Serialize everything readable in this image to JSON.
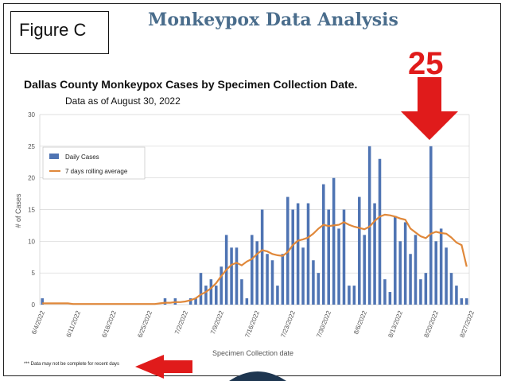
{
  "figure_label": "Figure C",
  "page_title": "Monkeypox Data Analysis",
  "callout_value": "25",
  "footnote": "*** Data may not be complete for recent days",
  "colors": {
    "bars": "#4f74b3",
    "line": "#e0883a",
    "arrow": "#e01b1b",
    "title": "#4a6d8c"
  },
  "chart_data": {
    "type": "bar",
    "title": "Dallas County Monkeypox Cases by Specimen Collection Date.",
    "subtitle": "Data as of August 30, 2022",
    "xlabel": "Specimen Collection date",
    "ylabel": "# of Cases",
    "ylim": [
      0,
      30
    ],
    "yticks": [
      0,
      5,
      10,
      15,
      20,
      25,
      30
    ],
    "grid": true,
    "legend_position": "top-left",
    "start_date": "6/4/2022",
    "x_tick_labels": [
      "6/4/2022",
      "6/11/2022",
      "6/18/2022",
      "6/25/2022",
      "7/2/2022",
      "7/9/2022",
      "7/16/2022",
      "7/23/2022",
      "7/30/2022",
      "8/6/2022",
      "8/13/2022",
      "8/20/2022",
      "8/27/2022"
    ],
    "series": [
      {
        "name": "Daily Cases",
        "type": "bar",
        "values": [
          1,
          0,
          0,
          0,
          0,
          0,
          0,
          0,
          0,
          0,
          0,
          0,
          0,
          0,
          0,
          0,
          0,
          0,
          0,
          0,
          0,
          0,
          0,
          0,
          1,
          0,
          1,
          0,
          0,
          1,
          1,
          5,
          3,
          4,
          3,
          6,
          11,
          9,
          9,
          4,
          1,
          11,
          10,
          15,
          8,
          7,
          3,
          8,
          17,
          15,
          16,
          9,
          16,
          7,
          5,
          19,
          15,
          20,
          12,
          15,
          3,
          3,
          17,
          11,
          25,
          16,
          23,
          4,
          2,
          14,
          10,
          13,
          8,
          11,
          4,
          5,
          25,
          10,
          12,
          9,
          5,
          3,
          1,
          1
        ],
        "labeled_max": 25
      },
      {
        "name": "7 days rolling average",
        "type": "line",
        "values": [
          0.2,
          0.2,
          0.2,
          0.2,
          0.2,
          0.2,
          0.1,
          0.1,
          0.1,
          0.1,
          0.1,
          0.1,
          0.1,
          0.1,
          0.1,
          0.1,
          0.1,
          0.1,
          0.1,
          0.1,
          0.1,
          0.1,
          0.1,
          0.2,
          0.3,
          0.3,
          0.4,
          0.4,
          0.5,
          0.7,
          1.0,
          1.6,
          2.0,
          2.6,
          3.4,
          4.5,
          5.5,
          6.3,
          6.6,
          6.2,
          6.8,
          7.2,
          8.0,
          8.6,
          8.4,
          8.0,
          7.8,
          7.7,
          8.3,
          9.4,
          10.1,
          10.3,
          10.6,
          11.2,
          12.0,
          12.6,
          12.4,
          12.5,
          12.6,
          13.0,
          12.6,
          12.3,
          12.1,
          11.9,
          12.3,
          13.2,
          13.9,
          14.2,
          14.1,
          13.9,
          13.6,
          13.4,
          12.0,
          11.4,
          10.8,
          10.5,
          11.2,
          11.5,
          11.3,
          11.2,
          10.6,
          9.8,
          9.4,
          6.0
        ]
      }
    ]
  }
}
